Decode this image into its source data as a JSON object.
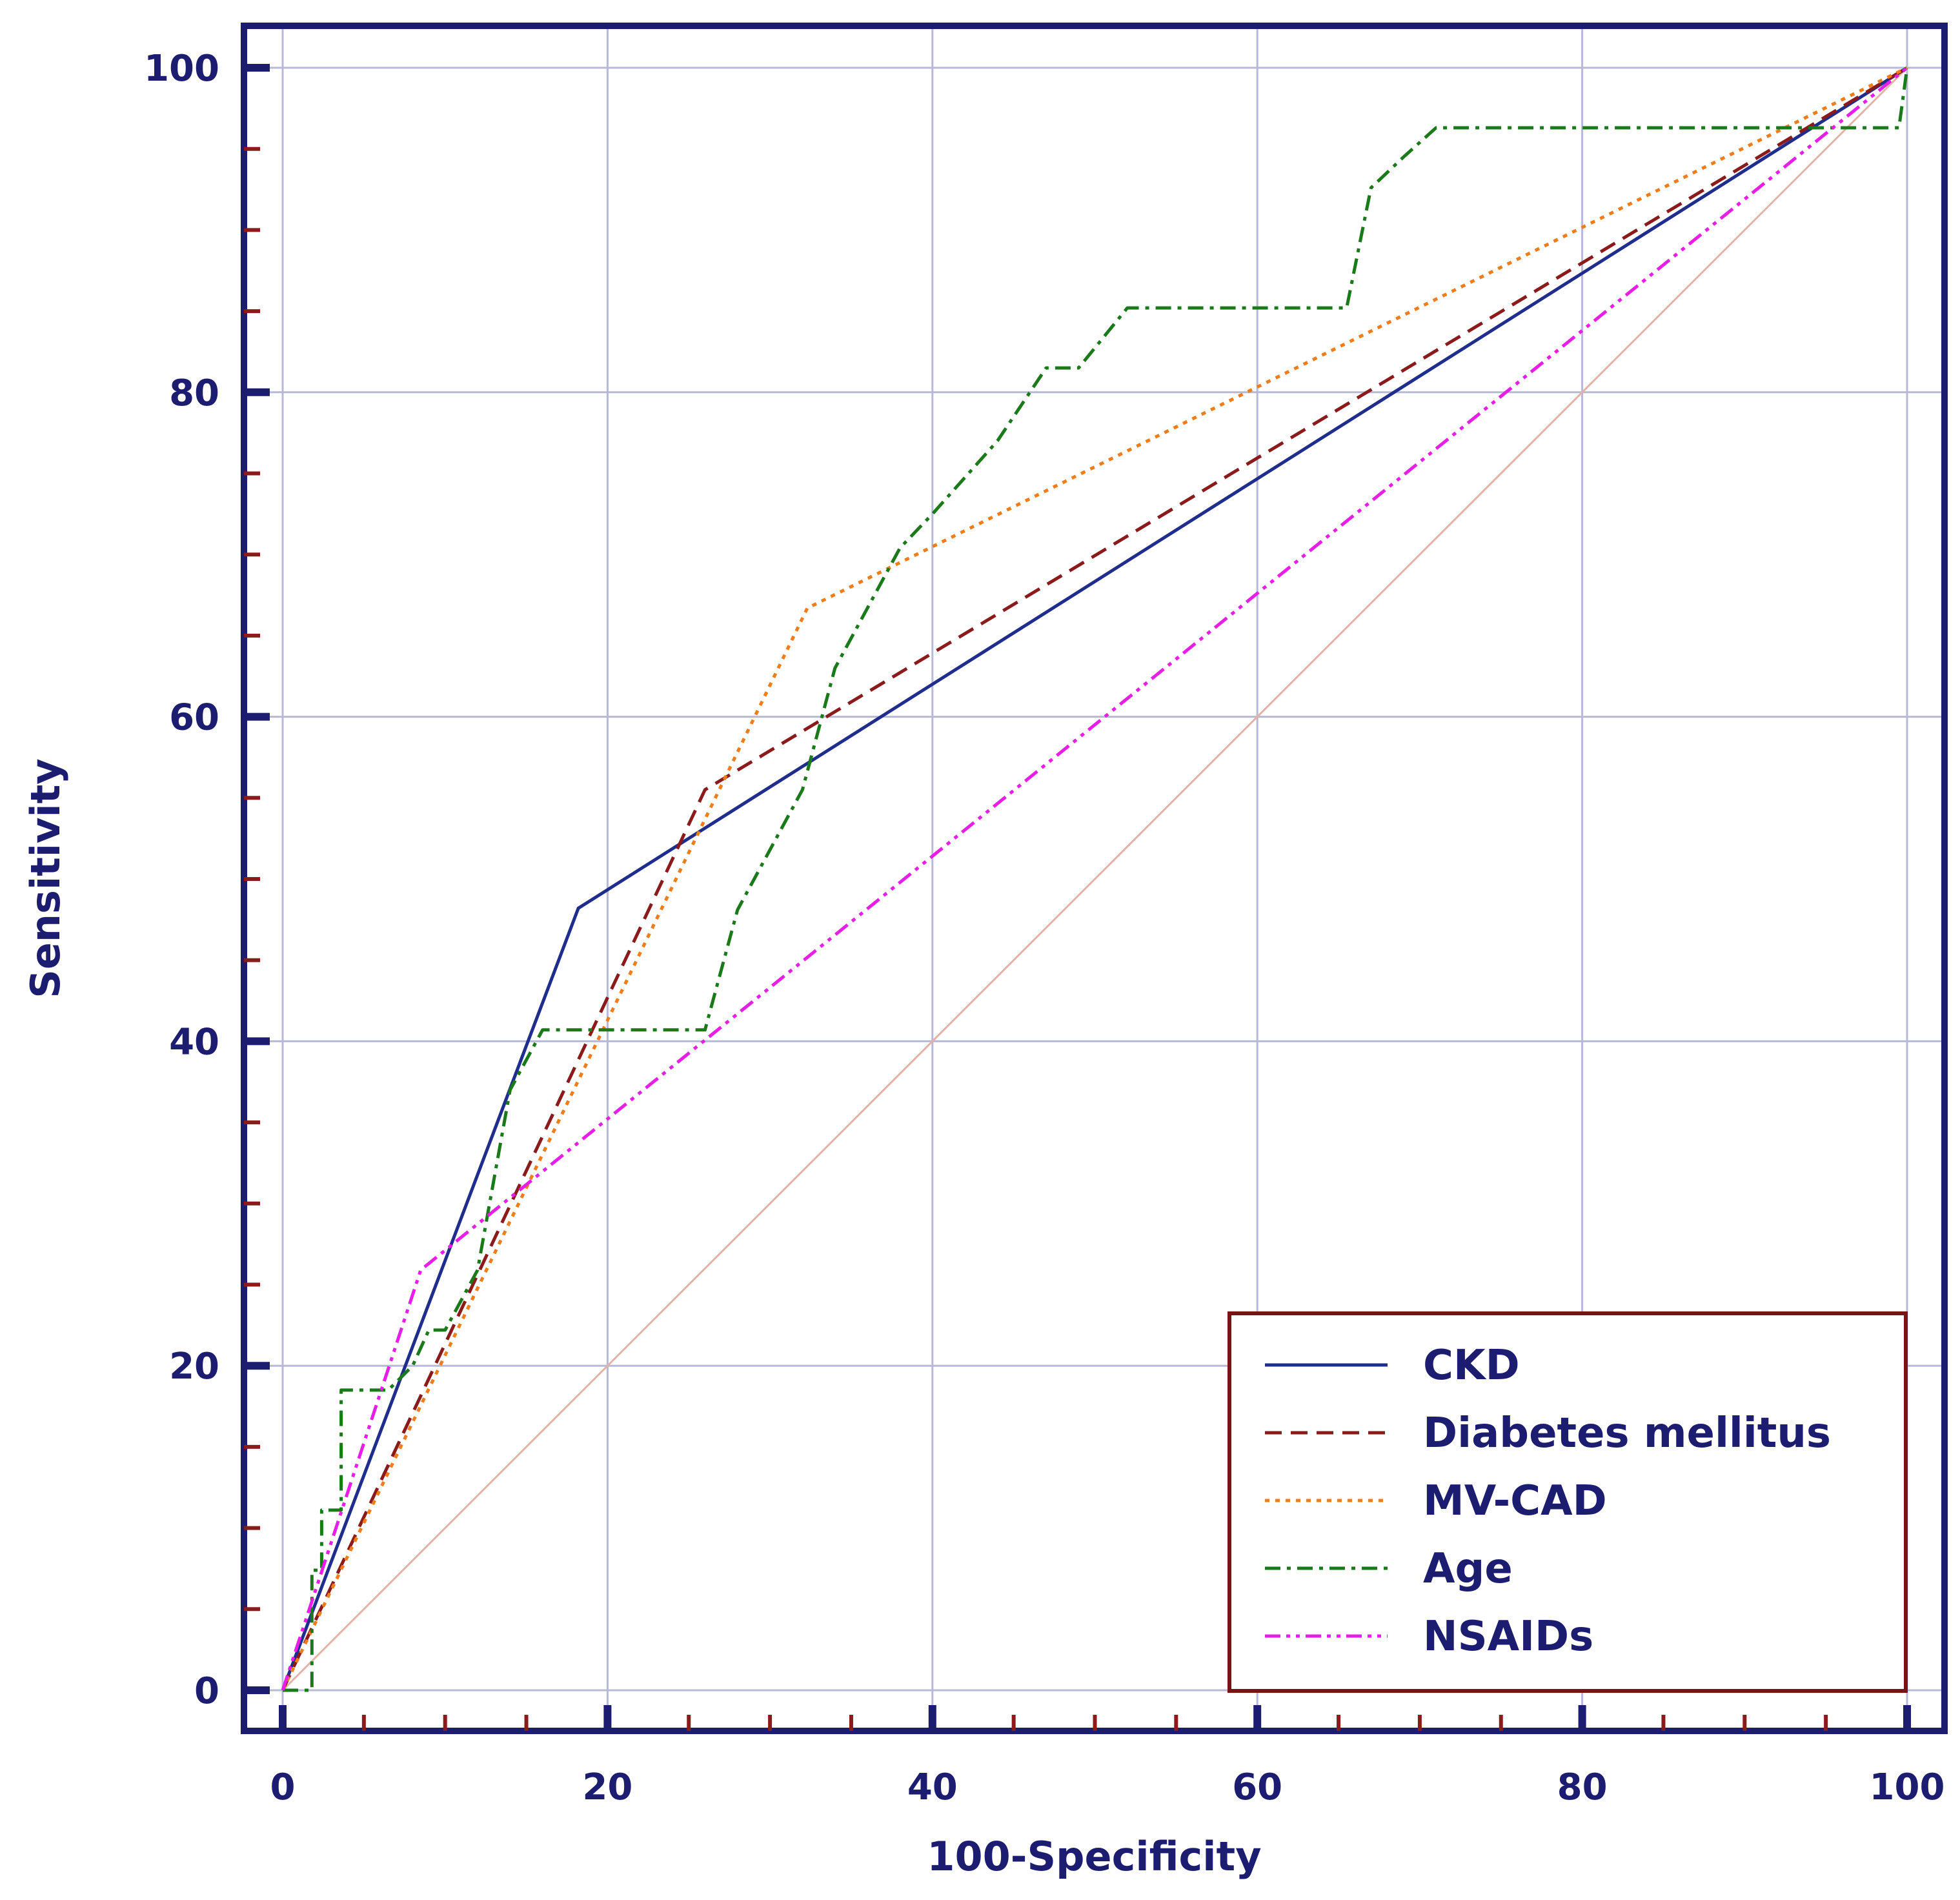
{
  "chart_data": {
    "type": "line",
    "xlabel": "100-Specificity",
    "ylabel": "Sensitivity",
    "xlim": [
      0,
      100
    ],
    "ylim": [
      0,
      100
    ],
    "xticks": [
      0,
      20,
      40,
      60,
      80,
      100
    ],
    "yticks": [
      0,
      20,
      40,
      60,
      80,
      100
    ],
    "grid": true,
    "legend_position": "bottom-right",
    "reference_line": {
      "color": "#e3b3a8",
      "x": [
        0,
        100
      ],
      "y": [
        0,
        100
      ]
    },
    "series": [
      {
        "name": "CKD",
        "color": "#1f2d8c",
        "dash": "solid",
        "x": [
          0,
          18.2,
          100
        ],
        "y": [
          0,
          48.2,
          100
        ]
      },
      {
        "name": "Diabetes mellitus",
        "color": "#8b1a1a",
        "dash": "dashed",
        "x": [
          0,
          26,
          100
        ],
        "y": [
          0,
          55.5,
          100
        ]
      },
      {
        "name": "MV-CAD",
        "color": "#f07d1a",
        "dash": "dotted",
        "x": [
          0,
          32.3,
          100
        ],
        "y": [
          0,
          66.7,
          100
        ]
      },
      {
        "name": "Age",
        "color": "#1a7a1a",
        "dash": "dashdot",
        "x": [
          0,
          1.8,
          1.8,
          2.4,
          2.4,
          3.6,
          3.6,
          6.5,
          8,
          9,
          10,
          12,
          14,
          16,
          16,
          18,
          26,
          28,
          30,
          32,
          34,
          36,
          38,
          40,
          44,
          47,
          49,
          52,
          60,
          65.5,
          67,
          69,
          71,
          80,
          90,
          99.5,
          100
        ],
        "y": [
          0,
          0,
          7.4,
          7.4,
          11.1,
          11.1,
          18.5,
          18.5,
          20,
          22.2,
          22.2,
          25.9,
          37,
          40.7,
          40.7,
          40.7,
          40.7,
          48.1,
          51.8,
          55.5,
          63,
          66.7,
          70.4,
          72.5,
          77,
          81.5,
          81.5,
          85.2,
          85.2,
          85.2,
          92.6,
          94.5,
          96.3,
          96.3,
          96.3,
          96.3,
          100
        ]
      },
      {
        "name": "NSAIDs",
        "color": "#e81ee8",
        "dash": "dashdotdot",
        "x": [
          0,
          8.5,
          100
        ],
        "y": [
          0,
          25.9,
          100
        ]
      }
    ]
  }
}
